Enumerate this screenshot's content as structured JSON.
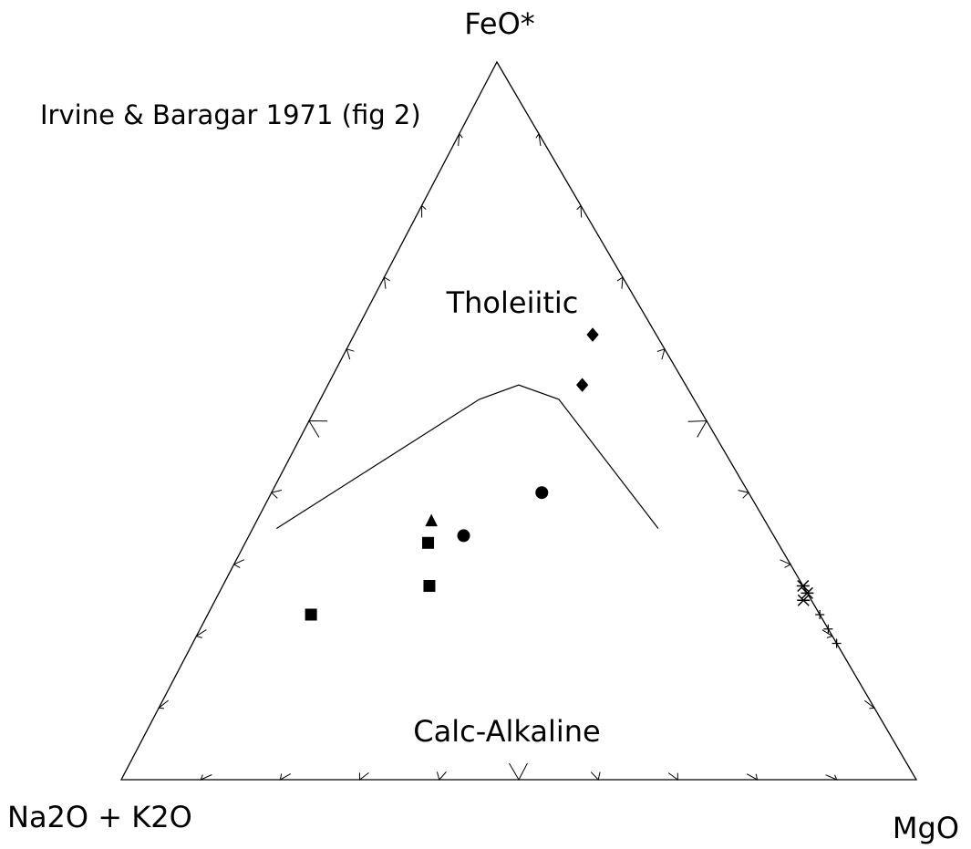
{
  "chart_data": {
    "type": "ternary",
    "title": "Irvine & Baragar 1971 (fig 2)",
    "top_label": "FeO*",
    "left_label": "Na2O + K2O",
    "right_label": "MgO",
    "field_labels": [
      "Tholeiitic",
      "Calc-Alkaline"
    ],
    "ticks": [
      10,
      20,
      30,
      40,
      50,
      60,
      70,
      80,
      90
    ],
    "major_tick": 50,
    "boundary": {
      "color": "#000",
      "top": [
        35,
        53,
        55,
        53,
        35
      ],
      "left": [
        62,
        27,
        21,
        17,
        14
      ],
      "right": [
        3,
        20,
        24,
        30,
        51
      ]
    },
    "series": [
      {
        "marker": "diamond",
        "color": "#000",
        "top": [
          62,
          55
        ],
        "left": [
          8,
          13
        ],
        "right": [
          30,
          32
        ]
      },
      {
        "marker": "circle",
        "color": "#000",
        "top": [
          40,
          34
        ],
        "left": [
          26,
          39
        ],
        "right": [
          34,
          27
        ]
      },
      {
        "marker": "triangle",
        "color": "#000",
        "top": [
          36
        ],
        "left": [
          42
        ],
        "right": [
          22
        ]
      },
      {
        "marker": "square",
        "color": "#000",
        "top": [
          33,
          27,
          23
        ],
        "left": [
          44,
          47,
          64
        ],
        "right": [
          23,
          26,
          13
        ]
      },
      {
        "marker": "asterisk",
        "color": "#000",
        "top": [
          27,
          26,
          25
        ],
        "left": [
          0,
          0,
          1
        ],
        "right": [
          73,
          74,
          74
        ]
      },
      {
        "marker": "plus",
        "color": "#000",
        "top": [
          23,
          21,
          19
        ],
        "left": [
          0,
          0,
          0
        ],
        "right": [
          77,
          79,
          81
        ]
      }
    ]
  }
}
